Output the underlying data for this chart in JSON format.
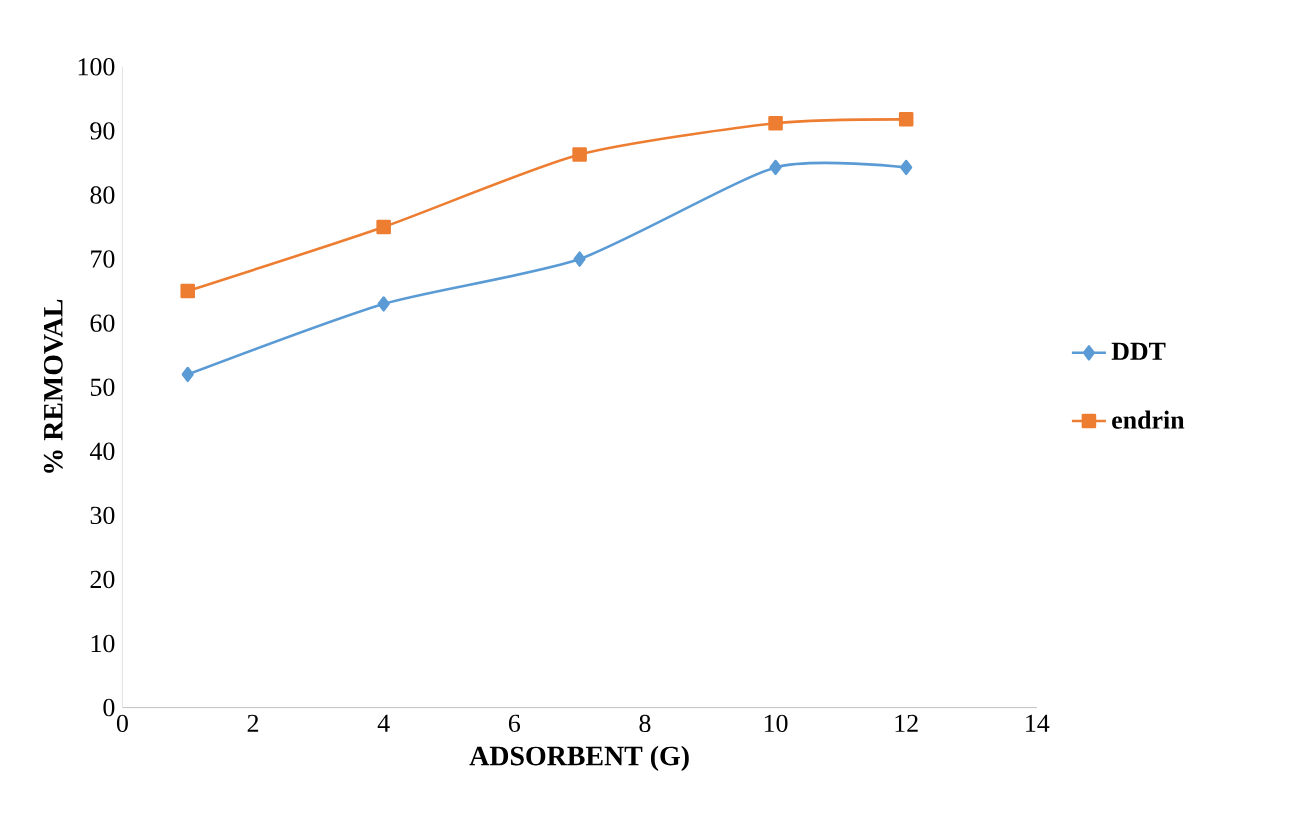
{
  "chart_data": {
    "type": "line",
    "xlabel": "ADSORBENT (G)",
    "ylabel": "% REMOVAL",
    "xlim": [
      0,
      14
    ],
    "xticks": [
      0,
      2,
      4,
      6,
      8,
      10,
      12,
      14
    ],
    "ylim": [
      0,
      100
    ],
    "yticks": [
      0,
      10,
      20,
      30,
      40,
      50,
      60,
      70,
      80,
      90,
      100
    ],
    "grid": false,
    "legend": "right",
    "series": [
      {
        "name": "DDT",
        "color": "#5b9bd5",
        "marker": "diamond",
        "x": [
          1,
          4,
          7,
          10,
          12
        ],
        "values": [
          52,
          63,
          70,
          84.3,
          84.3
        ]
      },
      {
        "name": "endrin",
        "color": "#ed7d31",
        "marker": "square",
        "x": [
          1,
          4,
          7,
          10,
          12
        ],
        "values": [
          65,
          75,
          86.3,
          91.2,
          91.8
        ]
      }
    ]
  }
}
